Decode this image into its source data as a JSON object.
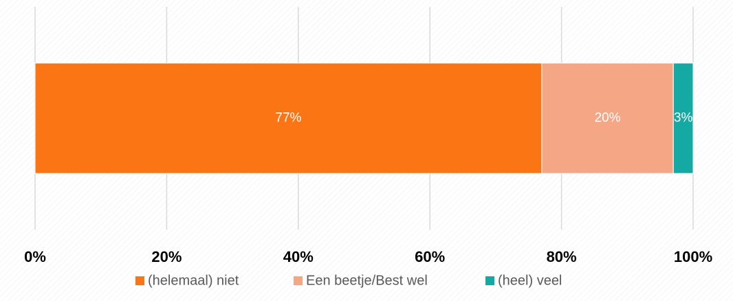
{
  "chart_data": {
    "type": "bar",
    "orientation": "horizontal",
    "stacked": true,
    "categories": [
      null
    ],
    "series": [
      {
        "name": "(helemaal) niet",
        "color": "#fb7514",
        "values": [
          77
        ],
        "value_labels": [
          "77%"
        ]
      },
      {
        "name": "Een beetje/Best wel",
        "color": "#f5a785",
        "values": [
          20
        ],
        "value_labels": [
          "20%"
        ]
      },
      {
        "name": "(heel) veel",
        "color": "#14aaa3",
        "values": [
          3
        ],
        "value_labels": [
          "3%"
        ]
      }
    ],
    "xlim": [
      0,
      100
    ],
    "xticks": [
      {
        "value": 0,
        "label": "0%"
      },
      {
        "value": 20,
        "label": "20%"
      },
      {
        "value": 40,
        "label": "40%"
      },
      {
        "value": 60,
        "label": "60%"
      },
      {
        "value": 80,
        "label": "80%"
      },
      {
        "value": 100,
        "label": "100%"
      }
    ],
    "grid": true,
    "legend": "bottom"
  }
}
